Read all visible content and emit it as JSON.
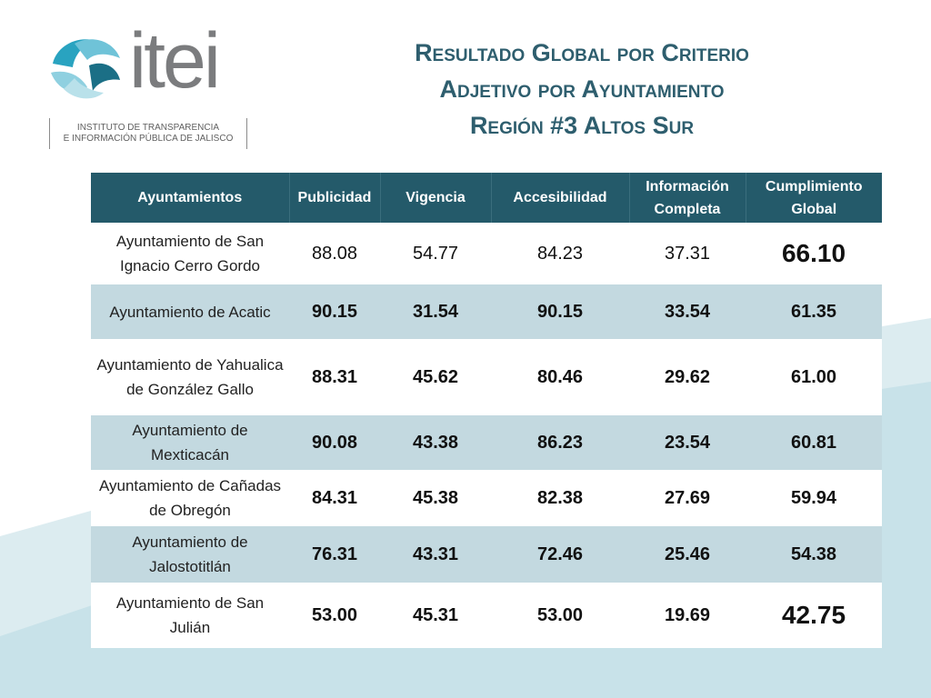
{
  "logo": {
    "wordmark": "itei",
    "subtitle_line1": "INSTITUTO DE TRANSPARENCIA",
    "subtitle_line2": "E INFORMACIÓN PÚBLICA DE JALISCO"
  },
  "title": {
    "line1": "Resultado Global por Criterio",
    "line2": "Adjetivo por Ayuntamiento",
    "line3": "Región #3 Altos Sur"
  },
  "table": {
    "headers": {
      "ayuntamientos": "Ayuntamientos",
      "publicidad": "Publicidad",
      "vigencia": "Vigencia",
      "accesibilidad": "Accesibilidad",
      "informacion_1": "Información",
      "informacion_2": "Completa",
      "cumplimiento_1": "Cumplimiento",
      "cumplimiento_2": "Global"
    },
    "rows": [
      {
        "name": "Ayuntamiento de San Ignacio Cerro Gordo",
        "publicidad": "88.08",
        "vigencia": "54.77",
        "accesibilidad": "84.23",
        "informacion": "37.31",
        "cumplimiento": "66.10"
      },
      {
        "name": "Ayuntamiento de Acatic",
        "publicidad": "90.15",
        "vigencia": "31.54",
        "accesibilidad": "90.15",
        "informacion": "33.54",
        "cumplimiento": "61.35"
      },
      {
        "name": "Ayuntamiento de Yahualica de González Gallo",
        "publicidad": "88.31",
        "vigencia": "45.62",
        "accesibilidad": "80.46",
        "informacion": "29.62",
        "cumplimiento": "61.00"
      },
      {
        "name": "Ayuntamiento de Mexticacán",
        "publicidad": "90.08",
        "vigencia": "43.38",
        "accesibilidad": "86.23",
        "informacion": "23.54",
        "cumplimiento": "60.81"
      },
      {
        "name": "Ayuntamiento de Cañadas de Obregón",
        "publicidad": "84.31",
        "vigencia": "45.38",
        "accesibilidad": "82.38",
        "informacion": "27.69",
        "cumplimiento": "59.94"
      },
      {
        "name": "Ayuntamiento de Jalostotitlán",
        "publicidad": "76.31",
        "vigencia": "43.31",
        "accesibilidad": "72.46",
        "informacion": "25.46",
        "cumplimiento": "54.38"
      },
      {
        "name": "Ayuntamiento de San Julián",
        "publicidad": "53.00",
        "vigencia": "45.31",
        "accesibilidad": "53.00",
        "informacion": "19.69",
        "cumplimiento": "42.75"
      }
    ]
  },
  "colors": {
    "header_bg": "#245a6a",
    "row_alt_bg": "#c3d9e0",
    "title_color": "#2e5e6e",
    "swoosh": "#cfe6ec"
  }
}
